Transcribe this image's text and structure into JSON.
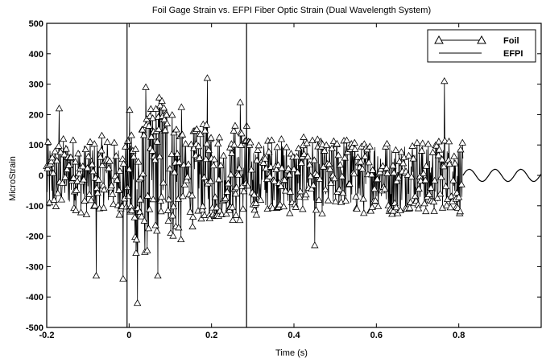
{
  "chart_data": {
    "type": "line",
    "title": "Foil Gage Strain vs. EFPI Fiber Optic Strain (Dual Wavelength System)",
    "xlabel": "Time (s)",
    "ylabel": "MicroStrain",
    "xlim": [
      -0.2,
      1.0
    ],
    "ylim": [
      -500,
      500
    ],
    "xticks": [
      -0.2,
      0,
      0.2,
      0.4,
      0.6,
      0.8
    ],
    "xtick_labels": [
      "-0.2",
      "0",
      "0.2",
      "0.4",
      "0.6",
      "0.8"
    ],
    "yticks": [
      -500,
      -400,
      -300,
      -200,
      -100,
      0,
      100,
      200,
      300,
      400,
      500
    ],
    "ytick_labels": [
      "-500",
      "-400",
      "-300",
      "-200",
      "-100",
      "0",
      "100",
      "200",
      "300",
      "400",
      "500"
    ],
    "grid": false,
    "legend_position": "top-right",
    "series": [
      {
        "name": "Foil",
        "marker": "triangle",
        "x_range": [
          -0.2,
          0.81
        ],
        "approx_peaks": [
          {
            "x": -0.17,
            "y": 220
          },
          {
            "x": -0.08,
            "y": -330
          },
          {
            "x": -0.015,
            "y": -340
          },
          {
            "x": 0.04,
            "y": 290
          },
          {
            "x": 0.02,
            "y": -420
          },
          {
            "x": 0.07,
            "y": -330
          },
          {
            "x": 0.19,
            "y": 320
          },
          {
            "x": 0.27,
            "y": 240
          },
          {
            "x": 0.45,
            "y": -230
          },
          {
            "x": 0.765,
            "y": 310
          }
        ]
      },
      {
        "name": "EFPI",
        "marker": "none",
        "x_range": [
          -0.2,
          1.0
        ],
        "spikes": [
          {
            "x": -0.005,
            "y_from": -500,
            "y_to": 500
          },
          {
            "x": 0.285,
            "y_from": -500,
            "y_to": 500
          }
        ],
        "tail_oscillation": {
          "x_from": 0.81,
          "x_to": 1.0,
          "amplitude": 20
        }
      }
    ]
  }
}
